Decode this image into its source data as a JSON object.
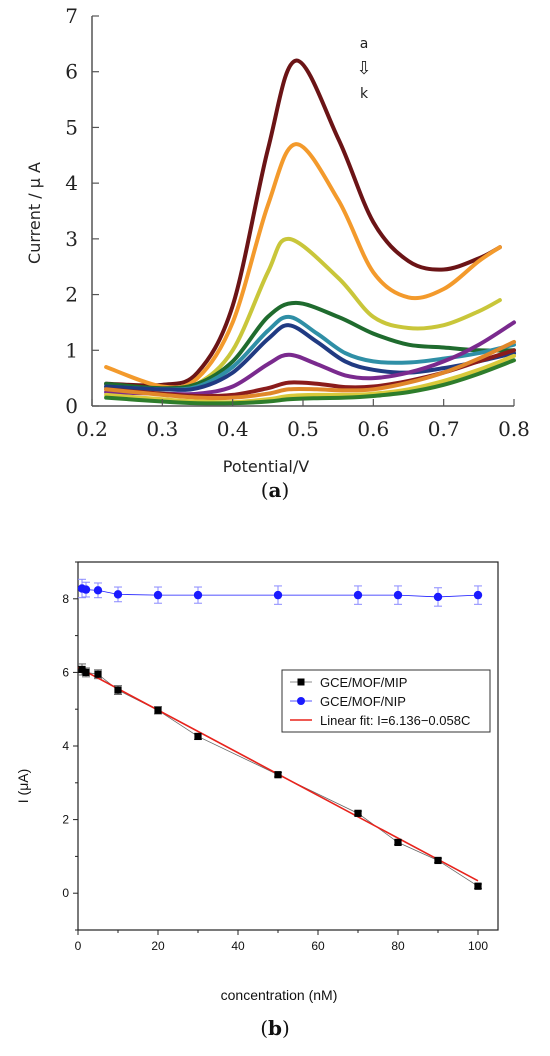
{
  "figure": {
    "caption_a_open": "(",
    "caption_a_letter": "a",
    "caption_a_close": ")",
    "caption_b_open": "(",
    "caption_b_letter": "b",
    "caption_b_close": ")"
  },
  "chart_data": [
    {
      "type": "line",
      "title": "",
      "xlabel": "Potential/V",
      "ylabel": "Current / μ A",
      "xlim": [
        0.2,
        0.8
      ],
      "ylim": [
        0,
        7
      ],
      "xticks": [
        "0.2",
        "0.3",
        "0.4",
        "0.5",
        "0.6",
        "0.7",
        "0.8"
      ],
      "yticks": [
        "0",
        "1",
        "2",
        "3",
        "4",
        "5",
        "6",
        "7"
      ],
      "annotation": {
        "top": "a",
        "arrow": "⇩",
        "bottom": "k"
      },
      "grid": false,
      "series": [
        {
          "color": "#6b1416",
          "x": [
            0.22,
            0.3,
            0.35,
            0.4,
            0.45,
            0.49,
            0.55,
            0.6,
            0.65,
            0.7,
            0.75,
            0.78
          ],
          "values": [
            0.4,
            0.38,
            0.6,
            1.8,
            4.6,
            6.2,
            4.8,
            3.3,
            2.6,
            2.45,
            2.65,
            2.85
          ]
        },
        {
          "color": "#f39a2c",
          "x": [
            0.22,
            0.3,
            0.35,
            0.4,
            0.45,
            0.49,
            0.55,
            0.6,
            0.65,
            0.7,
            0.75,
            0.78
          ],
          "values": [
            0.7,
            0.35,
            0.5,
            1.5,
            3.6,
            4.7,
            3.7,
            2.4,
            1.95,
            2.1,
            2.6,
            2.85
          ]
        },
        {
          "color": "#c9c63a",
          "x": [
            0.22,
            0.3,
            0.35,
            0.4,
            0.45,
            0.48,
            0.55,
            0.6,
            0.65,
            0.7,
            0.75,
            0.78
          ],
          "values": [
            0.35,
            0.3,
            0.4,
            1.0,
            2.4,
            3.0,
            2.3,
            1.6,
            1.4,
            1.45,
            1.7,
            1.9
          ]
        },
        {
          "color": "#1f6b2e",
          "x": [
            0.22,
            0.3,
            0.35,
            0.4,
            0.45,
            0.49,
            0.55,
            0.6,
            0.65,
            0.7,
            0.75,
            0.8
          ],
          "values": [
            0.4,
            0.32,
            0.4,
            0.8,
            1.6,
            1.85,
            1.6,
            1.3,
            1.1,
            1.05,
            1.0,
            1.0
          ]
        },
        {
          "color": "#2f8fa6",
          "x": [
            0.22,
            0.3,
            0.35,
            0.4,
            0.45,
            0.48,
            0.52,
            0.56,
            0.6,
            0.65,
            0.7,
            0.75,
            0.8
          ],
          "values": [
            0.35,
            0.3,
            0.35,
            0.7,
            1.35,
            1.6,
            1.3,
            0.95,
            0.8,
            0.78,
            0.85,
            0.95,
            1.1
          ]
        },
        {
          "color": "#203a82",
          "x": [
            0.22,
            0.3,
            0.35,
            0.4,
            0.45,
            0.48,
            0.52,
            0.56,
            0.6,
            0.65,
            0.7,
            0.75,
            0.8
          ],
          "values": [
            0.35,
            0.3,
            0.32,
            0.6,
            1.2,
            1.45,
            1.15,
            0.8,
            0.65,
            0.6,
            0.68,
            0.8,
            0.95
          ]
        },
        {
          "color": "#7a2a8e",
          "x": [
            0.22,
            0.3,
            0.35,
            0.4,
            0.45,
            0.48,
            0.52,
            0.56,
            0.6,
            0.65,
            0.7,
            0.75,
            0.8
          ],
          "values": [
            0.25,
            0.22,
            0.22,
            0.35,
            0.75,
            0.92,
            0.75,
            0.55,
            0.5,
            0.6,
            0.8,
            1.1,
            1.5
          ]
        },
        {
          "color": "#8a1c1c",
          "x": [
            0.22,
            0.3,
            0.35,
            0.4,
            0.45,
            0.48,
            0.52,
            0.56,
            0.6,
            0.65,
            0.7,
            0.75,
            0.8
          ],
          "values": [
            0.3,
            0.22,
            0.18,
            0.2,
            0.32,
            0.42,
            0.4,
            0.34,
            0.35,
            0.45,
            0.6,
            0.8,
            1.0
          ]
        },
        {
          "color": "#e0872a",
          "x": [
            0.22,
            0.3,
            0.35,
            0.4,
            0.45,
            0.48,
            0.52,
            0.56,
            0.6,
            0.65,
            0.7,
            0.75,
            0.8
          ],
          "values": [
            0.3,
            0.2,
            0.15,
            0.15,
            0.22,
            0.3,
            0.3,
            0.28,
            0.3,
            0.42,
            0.6,
            0.85,
            1.15
          ]
        },
        {
          "color": "#d8c93a",
          "x": [
            0.22,
            0.3,
            0.35,
            0.4,
            0.45,
            0.48,
            0.52,
            0.56,
            0.6,
            0.65,
            0.7,
            0.75,
            0.8
          ],
          "values": [
            0.2,
            0.12,
            0.08,
            0.07,
            0.12,
            0.18,
            0.2,
            0.2,
            0.22,
            0.3,
            0.45,
            0.65,
            0.9
          ]
        },
        {
          "color": "#2e7d2b",
          "x": [
            0.22,
            0.3,
            0.35,
            0.4,
            0.45,
            0.48,
            0.52,
            0.56,
            0.6,
            0.65,
            0.7,
            0.75,
            0.8
          ],
          "values": [
            0.15,
            0.08,
            0.05,
            0.05,
            0.08,
            0.12,
            0.14,
            0.15,
            0.18,
            0.25,
            0.38,
            0.58,
            0.82
          ]
        }
      ]
    },
    {
      "type": "scatter",
      "title": "",
      "xlabel": "concentration (nM)",
      "ylabel": "I (μA)",
      "xlim": [
        0,
        105
      ],
      "ylim": [
        -1,
        9
      ],
      "xticks": [
        "0",
        "20",
        "40",
        "60",
        "80",
        "100"
      ],
      "yticks": [
        "0",
        "2",
        "4",
        "6",
        "8"
      ],
      "grid": false,
      "legend_position": "right",
      "series": [
        {
          "name": "GCE/MOF/MIP",
          "color": "#000000",
          "marker": "square",
          "x": [
            1,
            2,
            5,
            10,
            20,
            30,
            50,
            70,
            80,
            90,
            100
          ],
          "values": [
            6.08,
            6.0,
            5.95,
            5.52,
            4.97,
            4.26,
            3.22,
            2.17,
            1.38,
            0.89,
            0.19
          ],
          "errors": [
            0.15,
            0.12,
            0.12,
            0.12,
            0.1,
            0.08,
            0.06,
            0.06,
            0.06,
            0.06,
            0.06
          ]
        },
        {
          "name": "GCE/MOF/NIP",
          "color": "#1a1aff",
          "marker": "circle",
          "x": [
            1,
            2,
            5,
            10,
            20,
            30,
            50,
            70,
            80,
            90,
            100
          ],
          "values": [
            8.28,
            8.25,
            8.23,
            8.12,
            8.1,
            8.1,
            8.1,
            8.1,
            8.1,
            8.05,
            8.1
          ],
          "errors": [
            0.25,
            0.2,
            0.2,
            0.2,
            0.22,
            0.22,
            0.25,
            0.25,
            0.25,
            0.25,
            0.25
          ]
        },
        {
          "name": "Linear fit: I=6.136−0.058C",
          "color": "#e8231c",
          "marker": "none",
          "x": [
            0,
            100
          ],
          "values": [
            6.136,
            0.336
          ]
        }
      ]
    }
  ]
}
